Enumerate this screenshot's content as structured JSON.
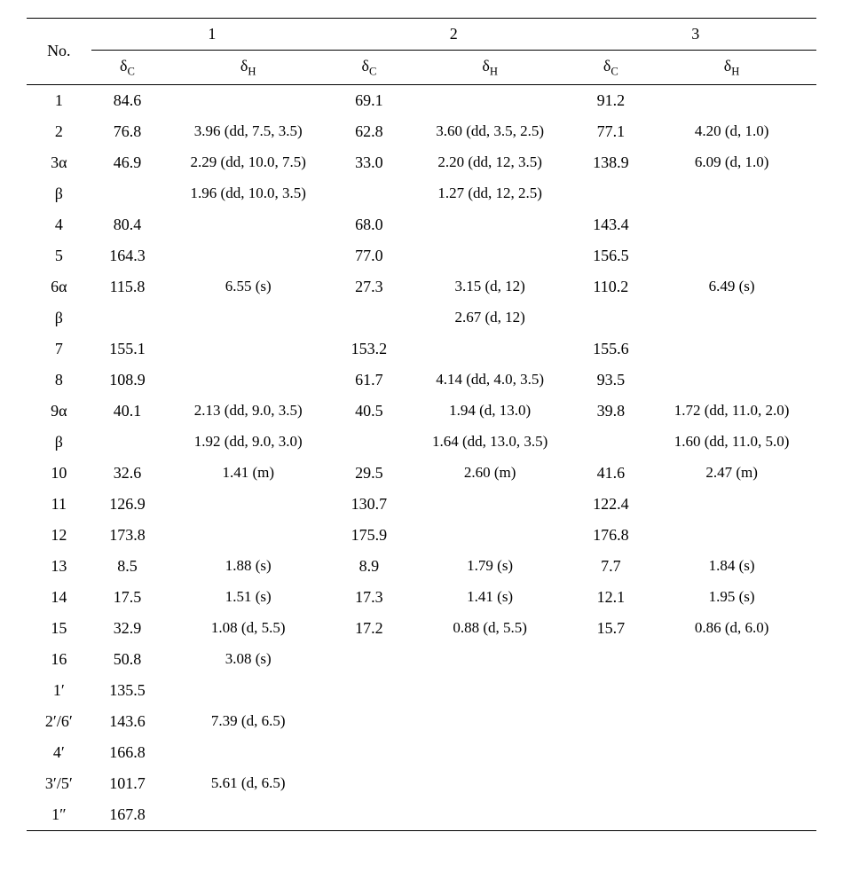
{
  "table": {
    "type": "table",
    "background_color": "#ffffff",
    "text_color": "#000000",
    "border_color": "#000000",
    "font_family": "Times New Roman",
    "header": {
      "row_label": "No.",
      "compounds": [
        "1",
        "2",
        "3"
      ],
      "sub_c": "δ",
      "sub_c_sub": "C",
      "sub_h": "δ",
      "sub_h_sub": "H"
    },
    "rows": [
      {
        "no": "1",
        "c1": "84.6",
        "h1": "",
        "c2": "69.1",
        "h2": "",
        "c3": "91.2",
        "h3": ""
      },
      {
        "no": "2",
        "c1": "76.8",
        "h1": "3.96 (dd, 7.5, 3.5)",
        "c2": "62.8",
        "h2": "3.60 (dd, 3.5, 2.5)",
        "c3": "77.1",
        "h3": "4.20 (d, 1.0)"
      },
      {
        "no": "3α",
        "c1": "46.9",
        "h1": "2.29 (dd, 10.0, 7.5)",
        "c2": "33.0",
        "h2": "2.20 (dd, 12, 3.5)",
        "c3": "138.9",
        "h3": "6.09 (d, 1.0)"
      },
      {
        "no": "β",
        "c1": "",
        "h1": "1.96 (dd, 10.0, 3.5)",
        "c2": "",
        "h2": "1.27 (dd, 12, 2.5)",
        "c3": "",
        "h3": ""
      },
      {
        "no": "4",
        "c1": "80.4",
        "h1": "",
        "c2": "68.0",
        "h2": "",
        "c3": "143.4",
        "h3": ""
      },
      {
        "no": "5",
        "c1": "164.3",
        "h1": "",
        "c2": "77.0",
        "h2": "",
        "c3": "156.5",
        "h3": ""
      },
      {
        "no": "6α",
        "c1": "115.8",
        "h1": "6.55 (s)",
        "c2": "27.3",
        "h2": "3.15 (d, 12)",
        "c3": "110.2",
        "h3": "6.49 (s)"
      },
      {
        "no": "β",
        "c1": "",
        "h1": "",
        "c2": "",
        "h2": "2.67 (d, 12)",
        "c3": "",
        "h3": ""
      },
      {
        "no": "7",
        "c1": "155.1",
        "h1": "",
        "c2": "153.2",
        "h2": "",
        "c3": "155.6",
        "h3": ""
      },
      {
        "no": "8",
        "c1": "108.9",
        "h1": "",
        "c2": "61.7",
        "h2": "4.14 (dd, 4.0, 3.5)",
        "c3": "93.5",
        "h3": ""
      },
      {
        "no": "9α",
        "c1": "40.1",
        "h1": "2.13 (dd, 9.0, 3.5)",
        "c2": "40.5",
        "h2": "1.94 (d, 13.0)",
        "c3": "39.8",
        "h3": "1.72 (dd, 11.0, 2.0)"
      },
      {
        "no": "β",
        "c1": "",
        "h1": "1.92 (dd, 9.0, 3.0)",
        "c2": "",
        "h2": "1.64 (dd, 13.0, 3.5)",
        "c3": "",
        "h3": "1.60 (dd, 11.0, 5.0)"
      },
      {
        "no": "10",
        "c1": "32.6",
        "h1": "1.41 (m)",
        "c2": "29.5",
        "h2": "2.60 (m)",
        "c3": "41.6",
        "h3": "2.47 (m)"
      },
      {
        "no": "11",
        "c1": "126.9",
        "h1": "",
        "c2": "130.7",
        "h2": "",
        "c3": "122.4",
        "h3": ""
      },
      {
        "no": "12",
        "c1": "173.8",
        "h1": "",
        "c2": "175.9",
        "h2": "",
        "c3": "176.8",
        "h3": ""
      },
      {
        "no": "13",
        "c1": "8.5",
        "h1": "1.88 (s)",
        "c2": "8.9",
        "h2": "1.79 (s)",
        "c3": "7.7",
        "h3": "1.84 (s)"
      },
      {
        "no": "14",
        "c1": "17.5",
        "h1": "1.51 (s)",
        "c2": "17.3",
        "h2": "1.41 (s)",
        "c3": "12.1",
        "h3": "1.95 (s)"
      },
      {
        "no": "15",
        "c1": "32.9",
        "h1": "1.08 (d, 5.5)",
        "c2": "17.2",
        "h2": "0.88 (d, 5.5)",
        "c3": "15.7",
        "h3": "0.86 (d, 6.0)"
      },
      {
        "no": "16",
        "c1": "50.8",
        "h1": "3.08 (s)",
        "c2": "",
        "h2": "",
        "c3": "",
        "h3": ""
      },
      {
        "no": "1′",
        "c1": "135.5",
        "h1": "",
        "c2": "",
        "h2": "",
        "c3": "",
        "h3": ""
      },
      {
        "no": "2′/6′",
        "c1": "143.6",
        "h1": "7.39 (d, 6.5)",
        "c2": "",
        "h2": "",
        "c3": "",
        "h3": ""
      },
      {
        "no": "4′",
        "c1": "166.8",
        "h1": "",
        "c2": "",
        "h2": "",
        "c3": "",
        "h3": ""
      },
      {
        "no": "3′/5′",
        "c1": "101.7",
        "h1": "5.61 (d, 6.5)",
        "c2": "",
        "h2": "",
        "c3": "",
        "h3": ""
      },
      {
        "no": "1″",
        "c1": "167.8",
        "h1": "",
        "c2": "",
        "h2": "",
        "c3": "",
        "h3": ""
      }
    ]
  }
}
